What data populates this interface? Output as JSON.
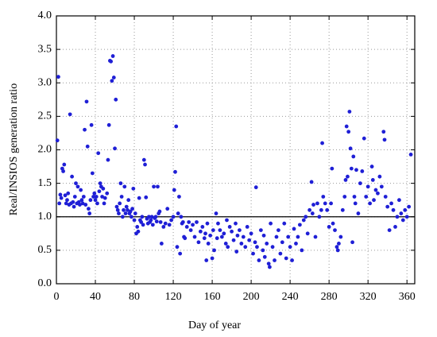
{
  "chart_data": {
    "type": "scatter",
    "xlabel": "Day of year",
    "ylabel": "Real/INSIOS generation ratio",
    "color": "#1f1fd6",
    "grid": true,
    "reference_line": 1.0,
    "xlim": [
      0,
      368
    ],
    "xticks": [
      0,
      40,
      80,
      120,
      160,
      200,
      240,
      280,
      320,
      360
    ],
    "ylim": [
      0,
      4
    ],
    "yticks": [
      {
        "value": 0,
        "label": "0.0"
      },
      0.5,
      {
        "value": 1,
        "label": "1.0"
      },
      1.5,
      {
        "value": 2,
        "label": "2.0"
      },
      2.5,
      {
        "value": 3,
        "label": "3.0"
      },
      3.5,
      {
        "value": 4,
        "label": "4.0"
      }
    ],
    "x": [
      1,
      2,
      3,
      4,
      5,
      6,
      7,
      8,
      9,
      10,
      11,
      12,
      13,
      14,
      15,
      16,
      17,
      18,
      19,
      20,
      21,
      22,
      23,
      24,
      25,
      26,
      27,
      28,
      29,
      30,
      31,
      32,
      33,
      34,
      35,
      36,
      37,
      38,
      39,
      40,
      41,
      42,
      43,
      44,
      45,
      46,
      47,
      48,
      49,
      50,
      52,
      53,
      54,
      55,
      56,
      57,
      58,
      59,
      60,
      61,
      62,
      63,
      64,
      65,
      66,
      67,
      68,
      69,
      70,
      71,
      72,
      73,
      74,
      75,
      76,
      77,
      78,
      79,
      80,
      81,
      82,
      83,
      84,
      85,
      86,
      87,
      88,
      89,
      90,
      91,
      92,
      93,
      94,
      95,
      96,
      97,
      98,
      99,
      100,
      101,
      102,
      103,
      104,
      105,
      106,
      107,
      108,
      110,
      112,
      114,
      116,
      118,
      120,
      121,
      122,
      123,
      124,
      125,
      126,
      127,
      128,
      129,
      130,
      131,
      132,
      134,
      136,
      138,
      140,
      142,
      144,
      146,
      148,
      150,
      152,
      153,
      154,
      155,
      156,
      158,
      160,
      161,
      162,
      164,
      165,
      166,
      168,
      170,
      172,
      174,
      175,
      176,
      178,
      180,
      182,
      184,
      185,
      186,
      188,
      190,
      192,
      194,
      196,
      198,
      200,
      202,
      204,
      205,
      206,
      208,
      210,
      212,
      213,
      214,
      216,
      218,
      219,
      220,
      222,
      224,
      226,
      228,
      230,
      232,
      234,
      236,
      238,
      240,
      242,
      244,
      246,
      248,
      250,
      252,
      254,
      256,
      258,
      260,
      262,
      263,
      264,
      266,
      268,
      270,
      272,
      273,
      274,
      276,
      278,
      280,
      282,
      283,
      284,
      286,
      288,
      289,
      290,
      292,
      294,
      296,
      297,
      298,
      299,
      300,
      301,
      302,
      303,
      304,
      305,
      306,
      307,
      308,
      310,
      312,
      314,
      316,
      318,
      320,
      322,
      324,
      325,
      326,
      328,
      330,
      332,
      334,
      336,
      337,
      338,
      340,
      342,
      344,
      346,
      348,
      350,
      352,
      354,
      356,
      358,
      360,
      362,
      364
    ],
    "values": [
      2.14,
      3.09,
      1.2,
      1.33,
      1.28,
      1.72,
      1.68,
      1.78,
      1.32,
      1.2,
      1.25,
      1.35,
      1.18,
      2.53,
      1.2,
      1.6,
      1.22,
      1.15,
      1.3,
      1.5,
      1.2,
      1.45,
      1.22,
      1.18,
      1.4,
      1.25,
      1.2,
      1.3,
      2.3,
      1.18,
      2.72,
      2.05,
      1.12,
      1.05,
      1.25,
      2.37,
      1.65,
      1.3,
      1.35,
      1.25,
      1.3,
      1.2,
      1.95,
      1.38,
      1.5,
      1.45,
      1.3,
      1.42,
      1.2,
      1.28,
      1.35,
      1.85,
      2.37,
      3.33,
      3.32,
      3.03,
      3.4,
      3.08,
      2.02,
      2.75,
      1.15,
      1.1,
      1.05,
      1.2,
      1.5,
      1.3,
      1.0,
      1.1,
      1.45,
      1.05,
      1.15,
      1.1,
      1.25,
      1.05,
      1.08,
      1.0,
      1.12,
      1.42,
      0.95,
      1.05,
      0.75,
      0.85,
      0.78,
      1.28,
      0.95,
      0.92,
      1.0,
      0.88,
      1.85,
      1.78,
      1.29,
      0.97,
      0.9,
      1.0,
      0.92,
      0.95,
      1.0,
      0.88,
      1.45,
      0.98,
      1.0,
      0.93,
      1.45,
      1.05,
      1.08,
      0.92,
      0.6,
      0.85,
      0.9,
      1.12,
      0.88,
      0.95,
      1.0,
      1.4,
      1.67,
      2.35,
      0.55,
      1.05,
      1.3,
      0.45,
      1.0,
      0.9,
      0.92,
      0.7,
      0.68,
      0.85,
      0.92,
      0.8,
      0.88,
      0.7,
      0.92,
      0.62,
      0.78,
      0.85,
      0.68,
      0.75,
      0.35,
      0.9,
      0.6,
      0.72,
      0.38,
      0.8,
      0.5,
      1.05,
      0.68,
      0.9,
      0.8,
      0.7,
      0.75,
      0.6,
      0.95,
      0.55,
      0.85,
      0.78,
      0.65,
      0.9,
      0.48,
      0.72,
      0.8,
      0.6,
      0.7,
      0.55,
      0.85,
      0.65,
      0.75,
      0.45,
      0.62,
      1.44,
      0.55,
      0.35,
      0.8,
      0.5,
      0.72,
      0.4,
      0.6,
      0.3,
      0.25,
      0.9,
      0.55,
      0.35,
      0.7,
      0.8,
      0.45,
      0.62,
      0.9,
      0.38,
      0.7,
      0.55,
      0.35,
      0.82,
      0.6,
      0.7,
      0.88,
      0.5,
      0.95,
      1.0,
      0.75,
      1.1,
      1.52,
      1.05,
      1.18,
      0.7,
      1.2,
      1.0,
      1.1,
      2.1,
      1.3,
      1.2,
      1.1,
      0.85,
      1.2,
      1.72,
      0.9,
      0.8,
      0.55,
      0.5,
      0.6,
      0.7,
      1.1,
      1.3,
      1.55,
      2.35,
      1.6,
      2.27,
      2.57,
      2.02,
      1.72,
      0.62,
      1.9,
      1.3,
      1.2,
      1.7,
      1.05,
      1.5,
      1.68,
      2.17,
      1.3,
      1.45,
      1.2,
      1.75,
      1.55,
      1.25,
      1.4,
      1.35,
      1.6,
      1.45,
      2.27,
      2.15,
      1.3,
      1.15,
      0.8,
      1.2,
      1.1,
      0.85,
      1.0,
      1.25,
      1.05,
      0.95,
      1.1,
      1.0,
      1.15,
      1.93
    ]
  }
}
